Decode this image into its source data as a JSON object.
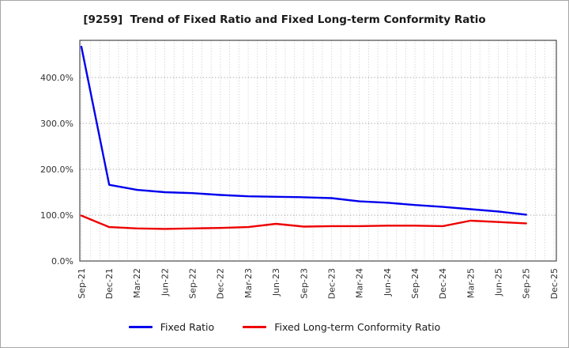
{
  "header": {
    "title": "[9259]  Trend of Fixed Ratio and Fixed Long-term Conformity Ratio"
  },
  "chart_data": {
    "type": "line",
    "categories": [
      "Sep-21",
      "Dec-21",
      "Mar-22",
      "Jun-22",
      "Sep-22",
      "Dec-22",
      "Mar-23",
      "Jun-23",
      "Sep-23",
      "Dec-23",
      "Mar-24",
      "Jun-24",
      "Sep-24",
      "Dec-24",
      "Mar-25",
      "Jun-25",
      "Sep-25",
      "Dec-25"
    ],
    "series": [
      {
        "name": "Fixed Ratio",
        "color": "#0000ee",
        "values": [
          467,
          166,
          155,
          150,
          148,
          144,
          141,
          140,
          139,
          137,
          130,
          127,
          122,
          118,
          113,
          108,
          101,
          null
        ]
      },
      {
        "name": "Fixed Long-term Conformity Ratio",
        "color": "#ee0000",
        "values": [
          99,
          74,
          71,
          70,
          71,
          72,
          74,
          81,
          75,
          76,
          76,
          77,
          77,
          76,
          88,
          85,
          82,
          null
        ]
      }
    ],
    "title": "[9259]  Trend of Fixed Ratio and Fixed Long-term Conformity Ratio",
    "xlabel": "",
    "ylabel": "",
    "ylim": [
      0,
      481
    ],
    "yticks": [
      0,
      100,
      200,
      300,
      400
    ],
    "ytick_suffix": "%",
    "grid": "dotted, monthly vertical minor grid + horizontal grid every 100%",
    "legend_position": "bottom-center"
  }
}
